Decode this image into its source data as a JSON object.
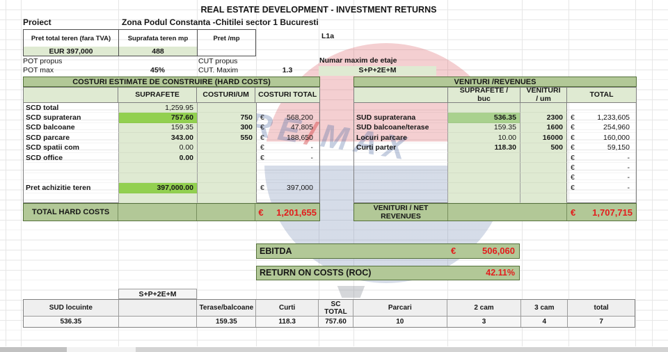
{
  "app": {
    "title": "REAL ESTATE DEVELOPMENT - INVESTMENT RETURNS"
  },
  "project": {
    "label": "Proiect",
    "name": "Zona Podul Constanta -Chitilei sector 1 Bucuresti",
    "code": "L1a"
  },
  "land": {
    "h1": "Pret total teren (fara TVA)",
    "h2": "Suprafata teren mp",
    "h3": "Pret /mp",
    "v1": "EUR 397,000",
    "v2": "488",
    "v3": ""
  },
  "params": {
    "pot_propus": "POT propus",
    "pot_max": "POT max",
    "pot_max_value": "45%",
    "cut_propus": "CUT propus",
    "cut_maxim": "CUT. Maxim",
    "cut_maxim_value": "1.3",
    "etaje_label": "Numar maxim de etaje",
    "etaje_value": "S+P+2E+M"
  },
  "costs": {
    "title": "COSTURI ESTIMATE DE CONSTRUIRE (HARD COSTS)",
    "col_suprafete": "SUPRAFETE",
    "col_um": "COSTURI/UM",
    "col_total": "COSTURI TOTAL",
    "rows": [
      {
        "label": "SCD total",
        "sup": "1,259.95",
        "um": "",
        "cur": "",
        "total": ""
      },
      {
        "label": "SCD suprateran",
        "sup": "757.60",
        "um": "750",
        "cur": "€",
        "total": "568,200",
        "hl": "hl1"
      },
      {
        "label": "SCD balcoane",
        "sup": "159.35",
        "um": "300",
        "cur": "€",
        "total": "47,805"
      },
      {
        "label": "SCD parcare",
        "sup": "343.00",
        "um": "550",
        "cur": "€",
        "total": "188,650",
        "sb": true
      },
      {
        "label": "SCD spatii com",
        "sup": "0.00",
        "um": "",
        "cur": "€",
        "total": "-"
      },
      {
        "label": "SCD office",
        "sup": "0.00",
        "um": "",
        "cur": "€",
        "total": "-",
        "sb": true
      },
      {
        "label": "",
        "sup": "",
        "um": "",
        "cur": "",
        "total": ""
      },
      {
        "label": "",
        "sup": "",
        "um": "",
        "cur": "",
        "total": ""
      },
      {
        "label": "Pret achizitie teren",
        "sup": "397,000.00",
        "um": "",
        "cur": "€",
        "total": "397,000",
        "hl": "hl1"
      },
      {
        "label": "",
        "sup": "",
        "um": "",
        "cur": "",
        "total": ""
      }
    ],
    "total_label": "TOTAL HARD COSTS",
    "total_cur": "€",
    "total_value": "1,201,655"
  },
  "revenues": {
    "title": "VENITURI /REVENUES",
    "col_suprafete": "SUPRAFETE / buc",
    "col_um": "VENITURI / um",
    "col_total": "TOTAL",
    "rows": [
      {
        "label": "",
        "sup": "",
        "um": "",
        "cur": "",
        "total": ""
      },
      {
        "label": "SUD supraterana",
        "sup": "536.35",
        "um": "2300",
        "cur": "€",
        "total": "1,233,605",
        "hl": "hl2"
      },
      {
        "label": "SUD balcoane/terase",
        "sup": "159.35",
        "um": "1600",
        "cur": "€",
        "total": "254,960"
      },
      {
        "label": "Locuri parcare",
        "sup": "10.00",
        "um": "16000",
        "cur": "€",
        "total": "160,000"
      },
      {
        "label": "Curti parter",
        "sup": "118.30",
        "um": "500",
        "cur": "€",
        "total": "59,150",
        "sb": true
      },
      {
        "label": "",
        "sup": "",
        "um": "",
        "cur": "€",
        "total": "-"
      },
      {
        "label": "",
        "sup": "",
        "um": "",
        "cur": "€",
        "total": "-"
      },
      {
        "label": "",
        "sup": "",
        "um": "",
        "cur": "€",
        "total": "-"
      },
      {
        "label": "",
        "sup": "",
        "um": "",
        "cur": "€",
        "total": "-"
      },
      {
        "label": "",
        "sup": "",
        "um": "",
        "cur": "",
        "total": ""
      }
    ],
    "total_label": "VENITURI / NET REVENUES",
    "total_cur": "€",
    "total_value": "1,707,715"
  },
  "summary": {
    "ebitda_label": "EBITDA",
    "ebitda_cur": "€",
    "ebitda_value": "506,060",
    "roc_label": "RETURN ON COSTS (ROC)",
    "roc_value": "42.11%"
  },
  "breakdown": {
    "floors": "S+P+2E+M",
    "headers": [
      "SUD locuinte",
      "",
      "Terase/balcoane",
      "Curti",
      "SC TOTAL",
      "Parcari",
      "2 cam",
      "3 cam",
      "total"
    ],
    "values": [
      "536.35",
      "",
      "159.35",
      "118.3",
      "757.60",
      "10",
      "3",
      "4",
      "7"
    ]
  },
  "watermark": {
    "part1": "RE",
    "slash": "/",
    "part2": "MAX"
  },
  "colors": {
    "accent_red": "#e31c1c",
    "band_green": "#b2c897",
    "pale_green": "#dfead2",
    "highlight_green": "#92d050",
    "highlight_green_soft": "#a9d18e",
    "border_green": "#54703a"
  }
}
